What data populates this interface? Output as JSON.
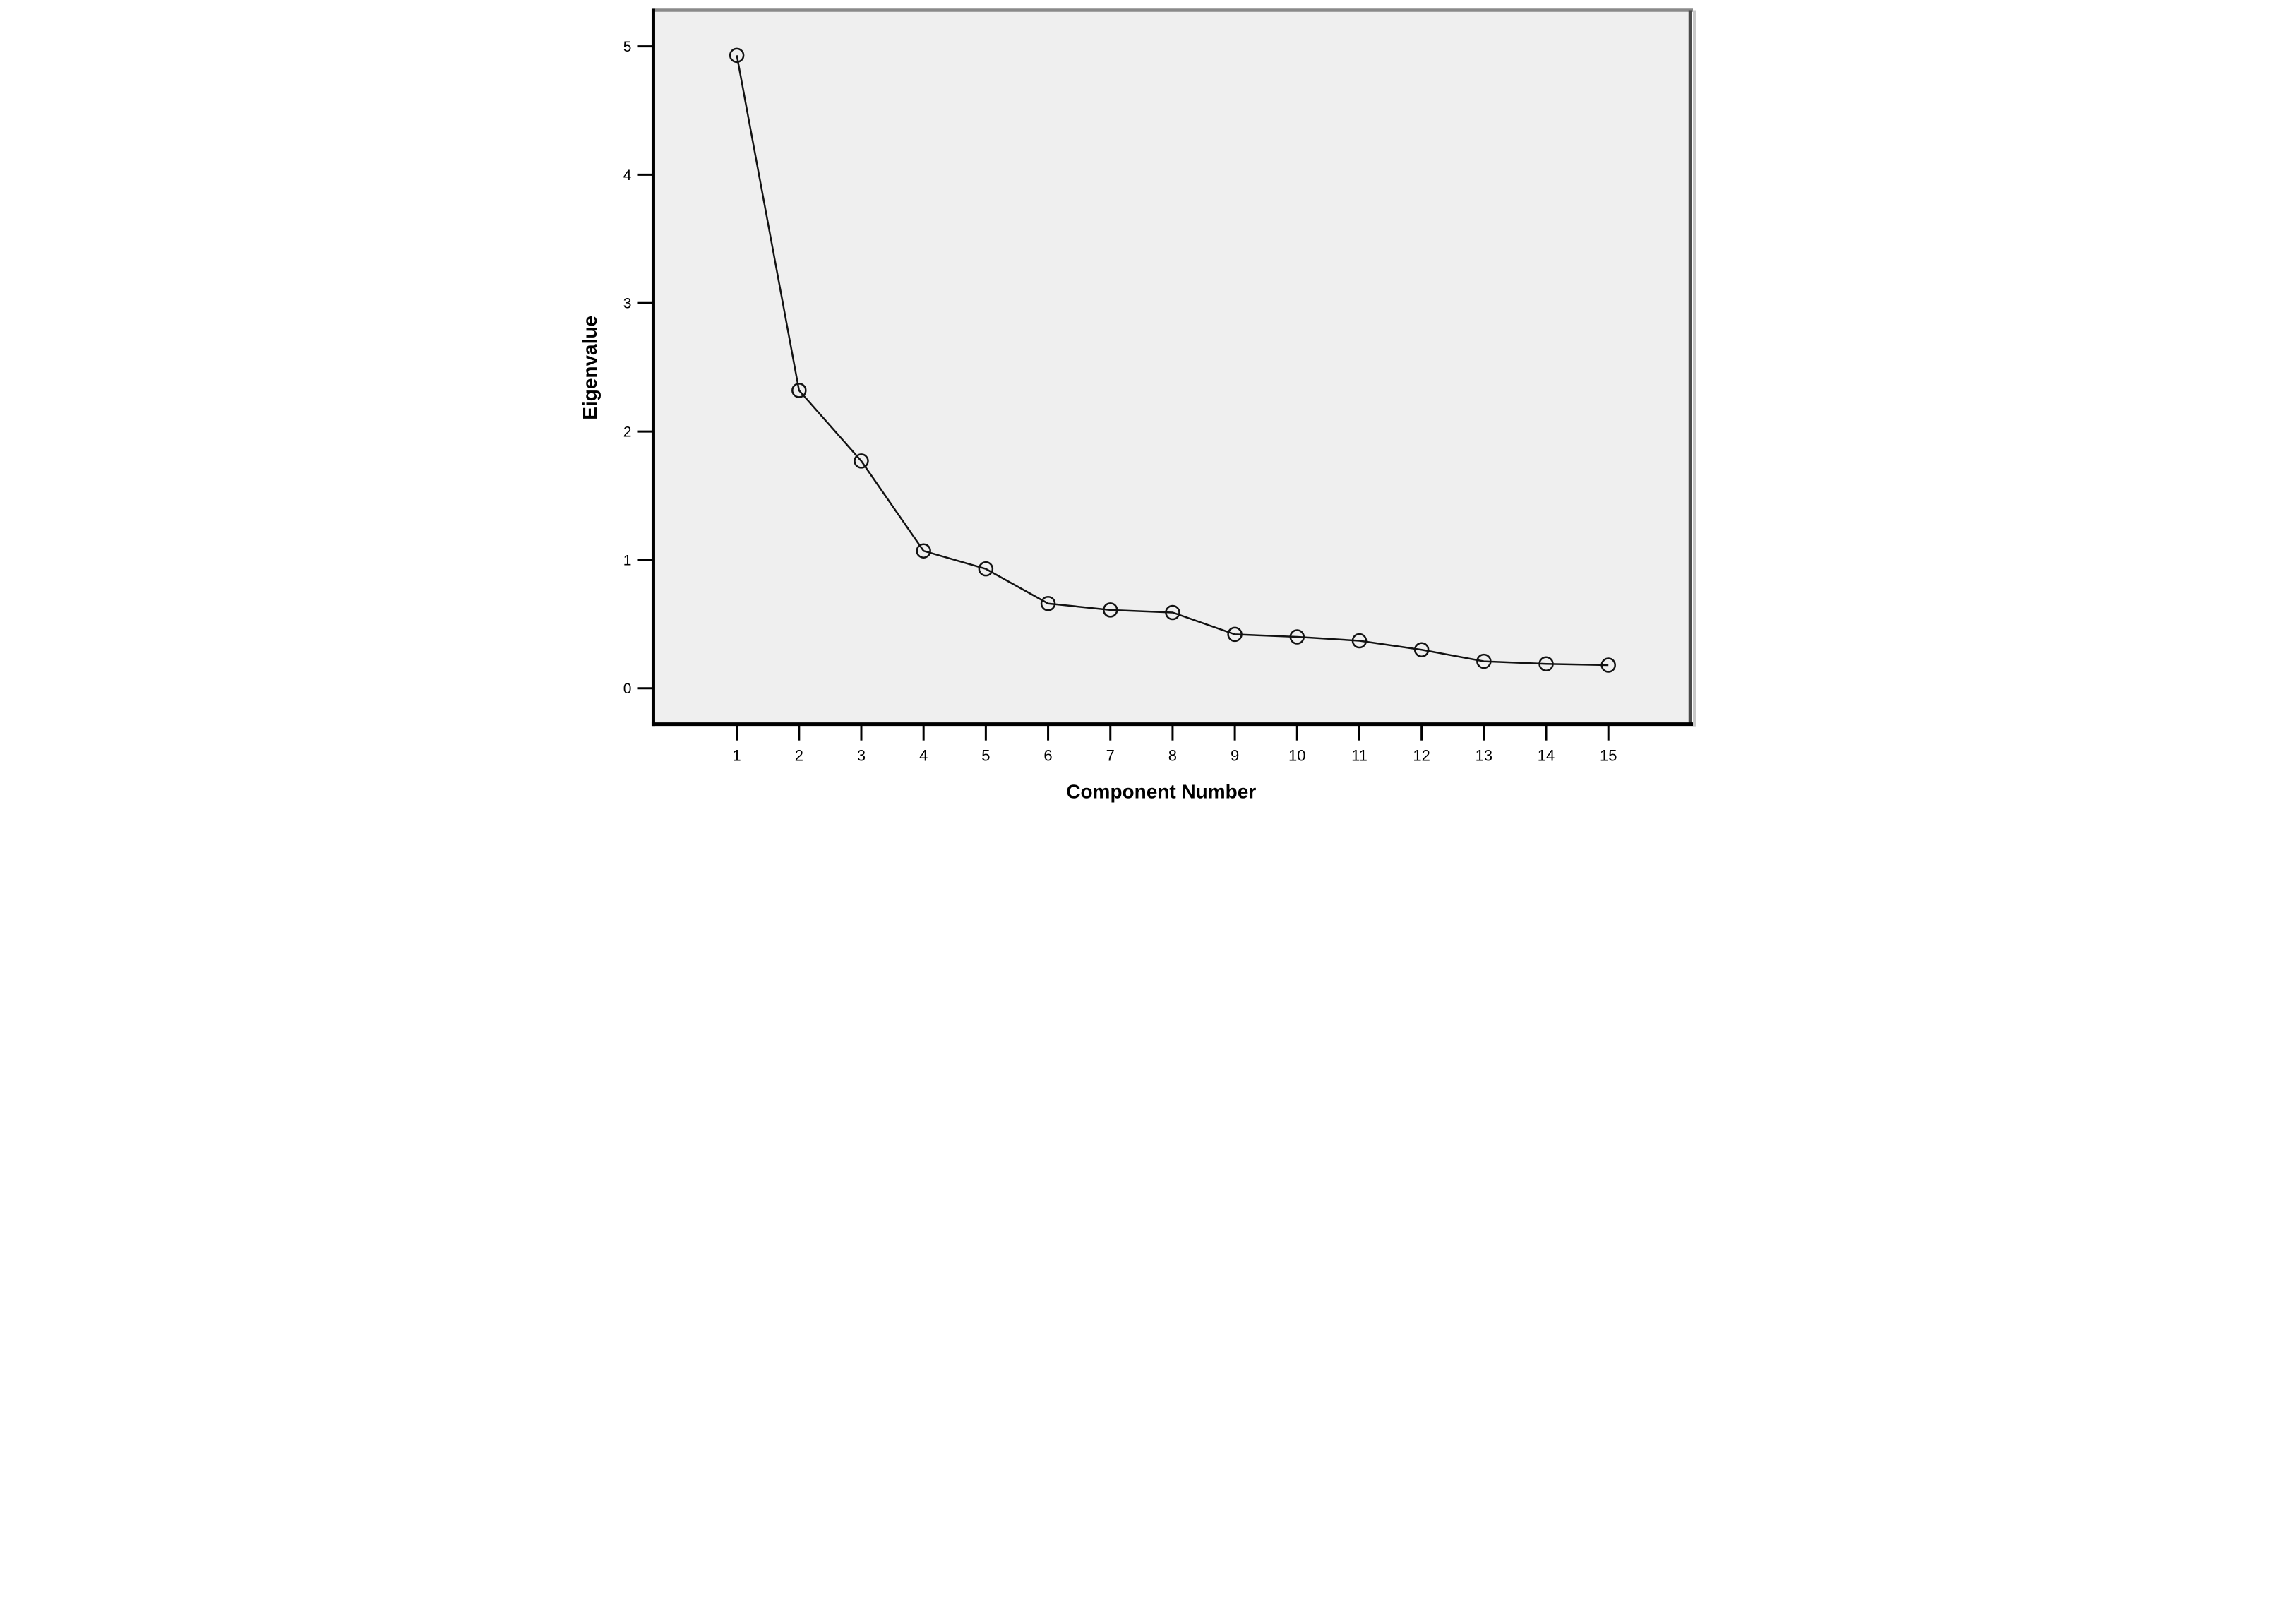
{
  "chart_data": {
    "type": "line",
    "title": "",
    "xlabel": "Component Number",
    "ylabel": "Eigenvalue",
    "x": [
      1,
      2,
      3,
      4,
      5,
      6,
      7,
      8,
      9,
      10,
      11,
      12,
      13,
      14,
      15
    ],
    "series": [
      {
        "name": "Eigenvalue",
        "values": [
          4.93,
          2.32,
          1.77,
          1.07,
          0.93,
          0.66,
          0.61,
          0.59,
          0.42,
          0.4,
          0.37,
          0.3,
          0.21,
          0.19,
          0.18
        ]
      }
    ],
    "x_tick_labels": [
      "1",
      "2",
      "3",
      "4",
      "5",
      "6",
      "7",
      "8",
      "9",
      "10",
      "11",
      "12",
      "13",
      "14",
      "15"
    ],
    "y_tick_labels": [
      "0",
      "1",
      "2",
      "3",
      "4",
      "5"
    ],
    "x_range": [
      -0.34,
      16.33
    ],
    "y_range": [
      -0.28,
      5.27
    ],
    "grid": false,
    "legend": false,
    "marker": "open-circle",
    "colors": {
      "line": "#121212",
      "marker_stroke": "#121212",
      "plot_background": "#efefef",
      "frame_left_bottom": "#000000",
      "frame_top": "#8a8a8a",
      "frame_right": "#4a4a4a",
      "frame_right_outer": "#c9c9c9",
      "text": "#000000"
    }
  }
}
